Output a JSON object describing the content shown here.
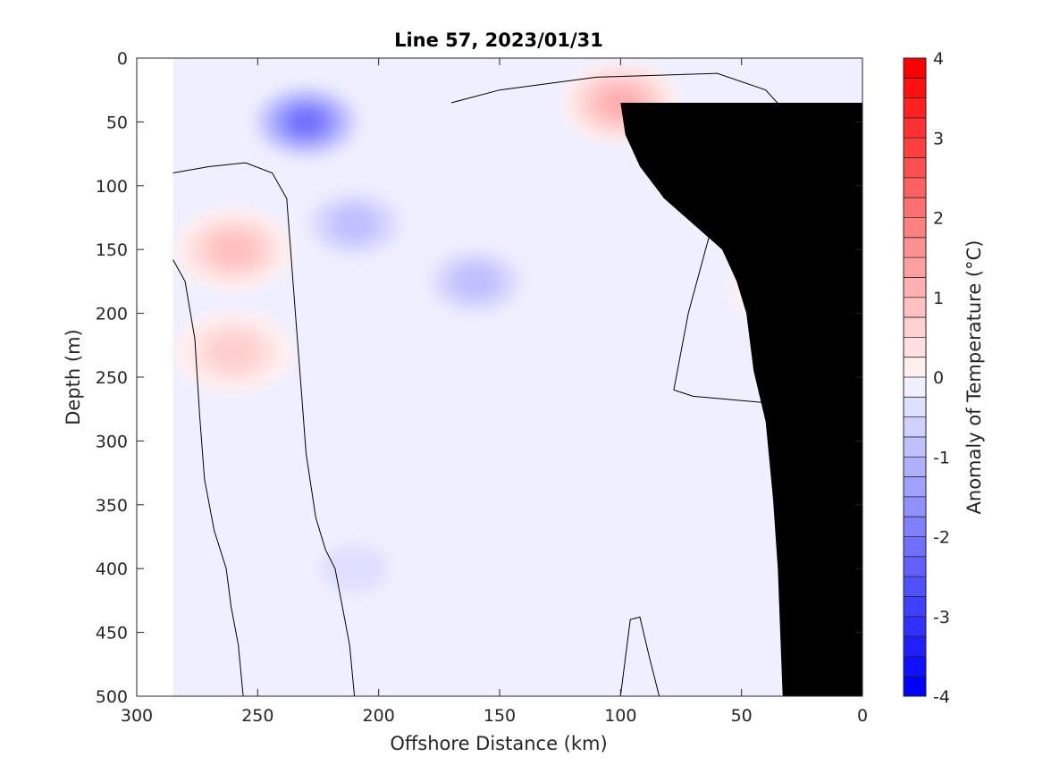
{
  "chart_data": {
    "type": "heatmap",
    "title": "Line 57, 2023/01/31",
    "xlabel": "Offshore Distance (km)",
    "ylabel": "Depth (m)",
    "x_reversed": true,
    "y_reversed": true,
    "xlim": [
      0,
      300
    ],
    "ylim": [
      0,
      500
    ],
    "x_ticks": [
      300,
      250,
      200,
      150,
      100,
      50,
      0
    ],
    "y_ticks": [
      0,
      50,
      100,
      150,
      200,
      250,
      300,
      350,
      400,
      450,
      500
    ],
    "colorbar": {
      "label": "Anomaly of Temperature (°C)",
      "range": [
        -4,
        4
      ],
      "step": 0.25,
      "ticks": [
        4,
        3,
        2,
        1,
        0,
        -1,
        -2,
        -3,
        -4
      ],
      "colormap": "blue-white-red diverging",
      "color_min": "#0000ff",
      "color_mid": "#ffffff",
      "color_max": "#ff0000"
    },
    "data_extent_x": [
      0,
      285
    ],
    "zero_contour_color": "#000000",
    "bathymetry_color": "#000000",
    "bathymetry": [
      [
        33,
        500
      ],
      [
        35,
        400
      ],
      [
        37,
        345
      ],
      [
        40,
        285
      ],
      [
        45,
        245
      ],
      [
        48,
        200
      ],
      [
        52,
        175
      ],
      [
        58,
        150
      ],
      [
        70,
        130
      ],
      [
        82,
        110
      ],
      [
        92,
        85
      ],
      [
        98,
        60
      ],
      [
        100,
        35
      ]
    ],
    "features": [
      {
        "kind": "cold core",
        "x": 230,
        "depth": 50,
        "anomaly": -2.2
      },
      {
        "kind": "cold",
        "x": 210,
        "depth": 130,
        "anomaly": -1.1
      },
      {
        "kind": "cold",
        "x": 160,
        "depth": 175,
        "anomaly": -1.0
      },
      {
        "kind": "cold",
        "x": 210,
        "depth": 400,
        "anomaly": -0.6
      },
      {
        "kind": "warm core",
        "x": 100,
        "depth": 35,
        "anomaly": 1.2
      },
      {
        "kind": "warm",
        "x": 260,
        "depth": 150,
        "anomaly": 1.0
      },
      {
        "kind": "warm",
        "x": 260,
        "depth": 230,
        "anomaly": 0.8
      },
      {
        "kind": "warm",
        "x": 30,
        "depth": 180,
        "anomaly": 0.5
      }
    ]
  }
}
